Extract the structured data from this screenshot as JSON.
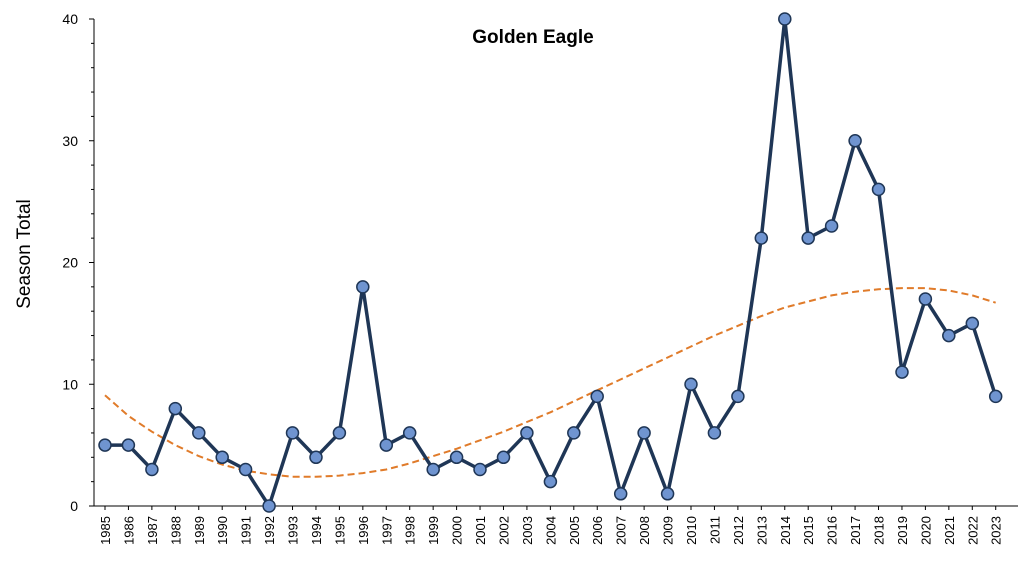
{
  "chart_data": {
    "type": "line",
    "title": "Golden Eagle",
    "xlabel": "",
    "ylabel": "Season Total",
    "ylim": [
      0,
      40
    ],
    "yticks": [
      "0",
      "10",
      "20",
      "30",
      "40"
    ],
    "x": [
      "1985",
      "1986",
      "1987",
      "1988",
      "1989",
      "1990",
      "1991",
      "1992",
      "1993",
      "1994",
      "1995",
      "1996",
      "1997",
      "1998",
      "1999",
      "2000",
      "2001",
      "2002",
      "2003",
      "2004",
      "2005",
      "2006",
      "2007",
      "2008",
      "2009",
      "2010",
      "2011",
      "2012",
      "2013",
      "2014",
      "2015",
      "2016",
      "2017",
      "2018",
      "2019",
      "2020",
      "2021",
      "2022",
      "2023"
    ],
    "series": [
      {
        "values": [
          5,
          5,
          3,
          8,
          6,
          4,
          3,
          0,
          6,
          4,
          6,
          18,
          5,
          6,
          3,
          4,
          3,
          4,
          6,
          2,
          6,
          9,
          1,
          6,
          1,
          10,
          6,
          9,
          22,
          40,
          22,
          23,
          30,
          26,
          11,
          17,
          14,
          15,
          9
        ],
        "color": "#1f3656",
        "marker_color": "#6f94d0"
      }
    ],
    "trendline": {
      "values": [
        9.1,
        7.4,
        6.1,
        5.0,
        4.1,
        3.4,
        2.9,
        2.6,
        2.4,
        2.4,
        2.5,
        2.7,
        3.0,
        3.5,
        4.1,
        4.7,
        5.4,
        6.1,
        6.9,
        7.7,
        8.6,
        9.5,
        10.4,
        11.3,
        12.2,
        13.1,
        14.0,
        14.8,
        15.6,
        16.3,
        16.8,
        17.3,
        17.6,
        17.8,
        17.9,
        17.9,
        17.7,
        17.3,
        16.7
      ],
      "color": "#e07b2a",
      "style": "dashed"
    },
    "grid": false
  }
}
